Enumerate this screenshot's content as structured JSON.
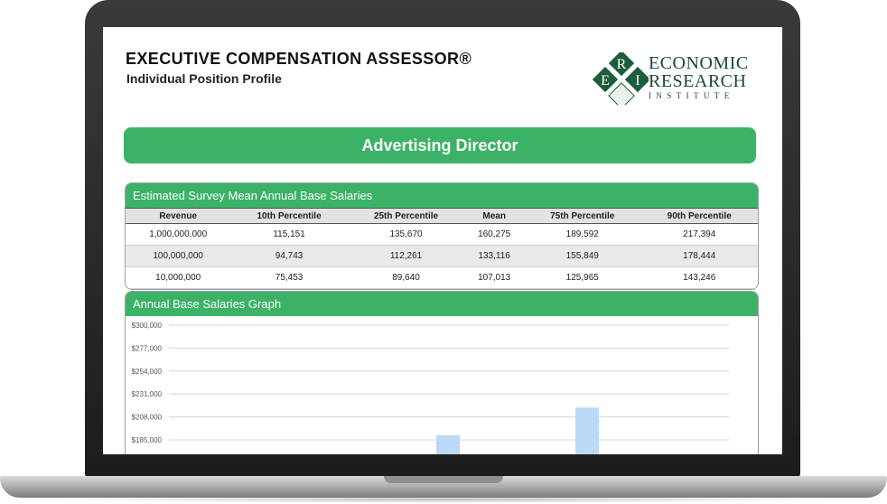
{
  "header": {
    "title": "EXECUTIVE COMPENSATION ASSESSOR®",
    "subtitle": "Individual Position Profile"
  },
  "logo": {
    "letters": [
      "E",
      "R",
      "I"
    ],
    "line1": "ECONOMIC",
    "line2": "RESEARCH",
    "line3": "INSTITUTE",
    "color": "#1c4a33"
  },
  "position_title": "Advertising Director",
  "salary_table": {
    "title": "Estimated Survey Mean Annual Base Salaries",
    "columns": [
      "Revenue",
      "10th Percentile",
      "25th Percentile",
      "Mean",
      "75th Percentile",
      "90th Percentile"
    ],
    "rows": [
      [
        "1,000,000,000",
        "115,151",
        "135,670",
        "160,275",
        "189,592",
        "217,394"
      ],
      [
        "100,000,000",
        "94,743",
        "112,261",
        "133,116",
        "155,849",
        "178,444"
      ],
      [
        "10,000,000",
        "75,453",
        "89,640",
        "107,013",
        "125,965",
        "143,246"
      ]
    ]
  },
  "graph": {
    "title": "Annual Base Salaries Graph"
  },
  "colors": {
    "accent_green": "#3bb265",
    "bar_light": "#bcd9f7",
    "bar_mid": "#9fc8f2"
  },
  "chart_data": {
    "type": "bar",
    "ylim": [
      185000,
      300000
    ],
    "yticks": [
      "$185,000",
      "$208,000",
      "$231,000",
      "$254,000",
      "$277,000",
      "$300,000"
    ],
    "grid": true,
    "stacks": [
      {
        "segments": [
          {
            "from": 185000,
            "to": 189592,
            "color": "#bcd9f7"
          }
        ]
      },
      {
        "segments": [
          {
            "from": 185000,
            "to": 203000,
            "color": "#9fc8f2"
          },
          {
            "from": 203000,
            "to": 217394,
            "color": "#bcd9f7"
          }
        ]
      }
    ]
  }
}
